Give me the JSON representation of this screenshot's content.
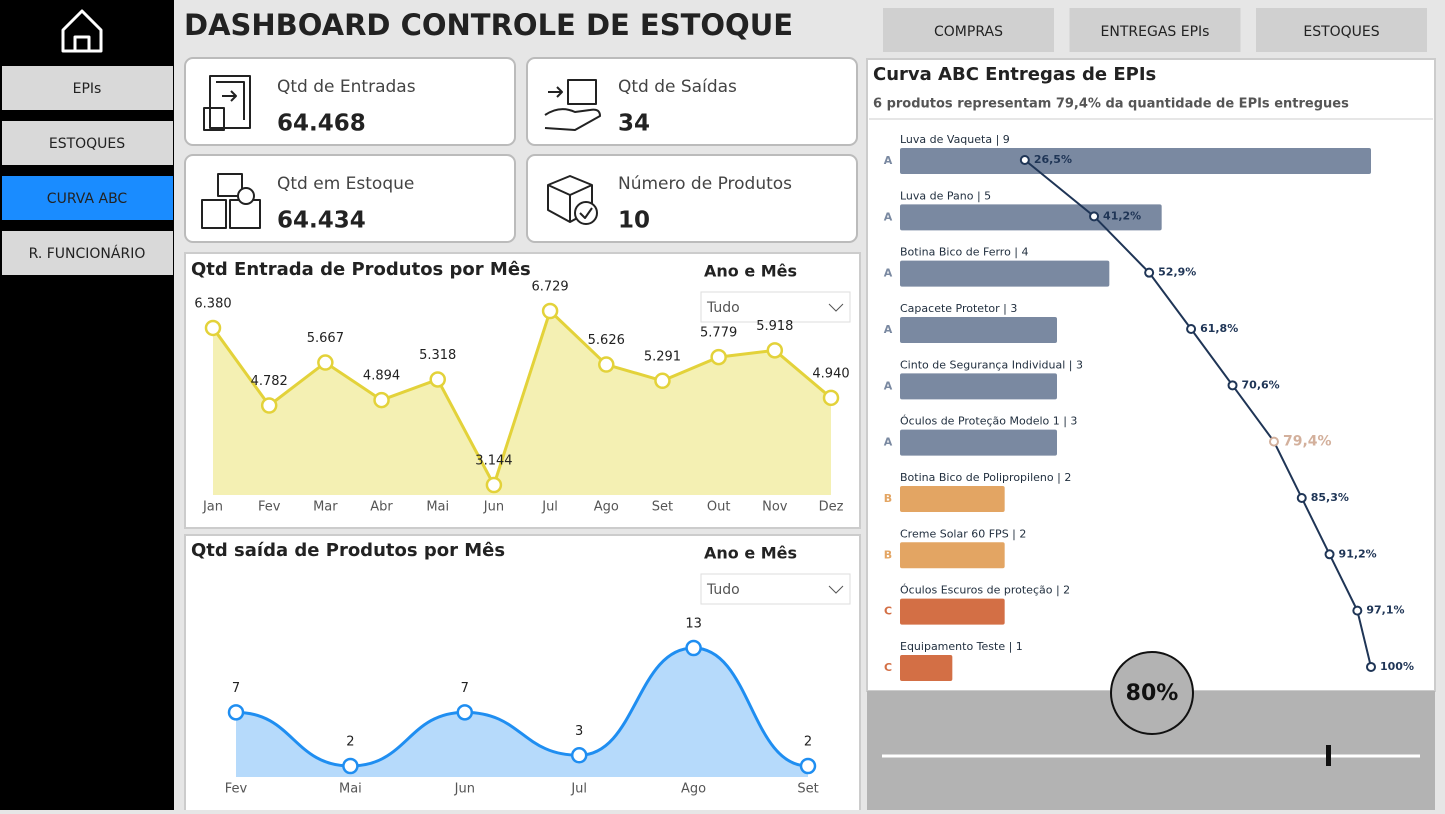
{
  "sidebar": {
    "items": [
      "EPIs",
      "ESTOQUES",
      "CURVA ABC",
      "R. FUNCIONÁRIO"
    ],
    "active": "CURVA ABC"
  },
  "header": {
    "title": "DASHBOARD CONTROLE DE ESTOQUE",
    "buttons": [
      "COMPRAS",
      "ENTREGAS EPIs",
      "ESTOQUES"
    ]
  },
  "kpis": [
    {
      "label": "Qtd de Entradas",
      "value": "64.468"
    },
    {
      "label": "Qtd de Saídas",
      "value": "34"
    },
    {
      "label": "Qtd em Estoque",
      "value": "64.434"
    },
    {
      "label": "Número de Produtos",
      "value": "10"
    }
  ],
  "slicers": [
    {
      "label": "Ano e Mês",
      "value": "Tudo"
    },
    {
      "label": "Ano e Mês",
      "value": "Tudo"
    }
  ],
  "threshold": {
    "label": "80%"
  },
  "chart_data": [
    {
      "type": "line",
      "title": "Qtd Entrada de Produtos por Mês",
      "categories": [
        "Jan",
        "Fev",
        "Mar",
        "Abr",
        "Mai",
        "Jun",
        "Jul",
        "Ago",
        "Set",
        "Out",
        "Nov",
        "Dez"
      ],
      "values": [
        6380,
        4782,
        5667,
        4894,
        5318,
        3144,
        6729,
        5626,
        5291,
        5779,
        5918,
        4940
      ],
      "value_labels": [
        "6.380",
        "4.782",
        "5.667",
        "4.894",
        "5.318",
        "3.144",
        "6.729",
        "5.626",
        "5.291",
        "5.779",
        "5.918",
        "4.940"
      ],
      "color": "#e3d23a",
      "fill": "#f4f0b3",
      "smooth": false
    },
    {
      "type": "line",
      "title": "Qtd saída de Produtos por Mês",
      "categories": [
        "Fev",
        "Mai",
        "Jun",
        "Jul",
        "Ago",
        "Set"
      ],
      "values": [
        7,
        2,
        7,
        3,
        13,
        2
      ],
      "color": "#1f8ef1",
      "fill": "#b6dafb",
      "smooth": true
    },
    {
      "type": "abc",
      "title": "Curva ABC Entregas de EPIs",
      "subtitle": "6 produtos representam 79,4% da quantidade de EPIs entregues",
      "categories": [
        "Luva de Vaqueta | 9",
        "Luva de Pano | 5",
        "Botina Bico de Ferro | 4",
        "Capacete Protetor | 3",
        "Cinto de Segurança Individual | 3",
        "Óculos de Proteção Modelo 1 | 3",
        "Botina Bico de Polipropileno | 2",
        "Creme Solar 60 FPS | 2",
        "Óculos Escuros de proteção | 2",
        "Equipamento Teste | 1"
      ],
      "values": [
        9,
        5,
        4,
        3,
        3,
        3,
        2,
        2,
        2,
        1
      ],
      "classes": [
        "A",
        "A",
        "A",
        "A",
        "A",
        "A",
        "B",
        "B",
        "C",
        "C"
      ],
      "class_colors": {
        "A": "#7a89a1",
        "B": "#e3a563",
        "C": "#d36f45"
      },
      "cumulative_values": [
        26.5,
        41.2,
        52.9,
        61.8,
        70.6,
        79.4,
        85.3,
        91.2,
        97.1,
        100
      ],
      "cumulative_labels": [
        "26,5%",
        "41,2%",
        "52,9%",
        "61,8%",
        "70,6%",
        "79,4%",
        "85,3%",
        "91,2%",
        "97,1%",
        "100%"
      ],
      "line_color": "#1f3556",
      "point_colors": [
        "#1f3556",
        "#1f3556",
        "#1f3556",
        "#1f3556",
        "#1f3556",
        "#d3b09c",
        "#1f3556",
        "#1f3556",
        "#1f3556",
        "#1f3556"
      ]
    }
  ]
}
